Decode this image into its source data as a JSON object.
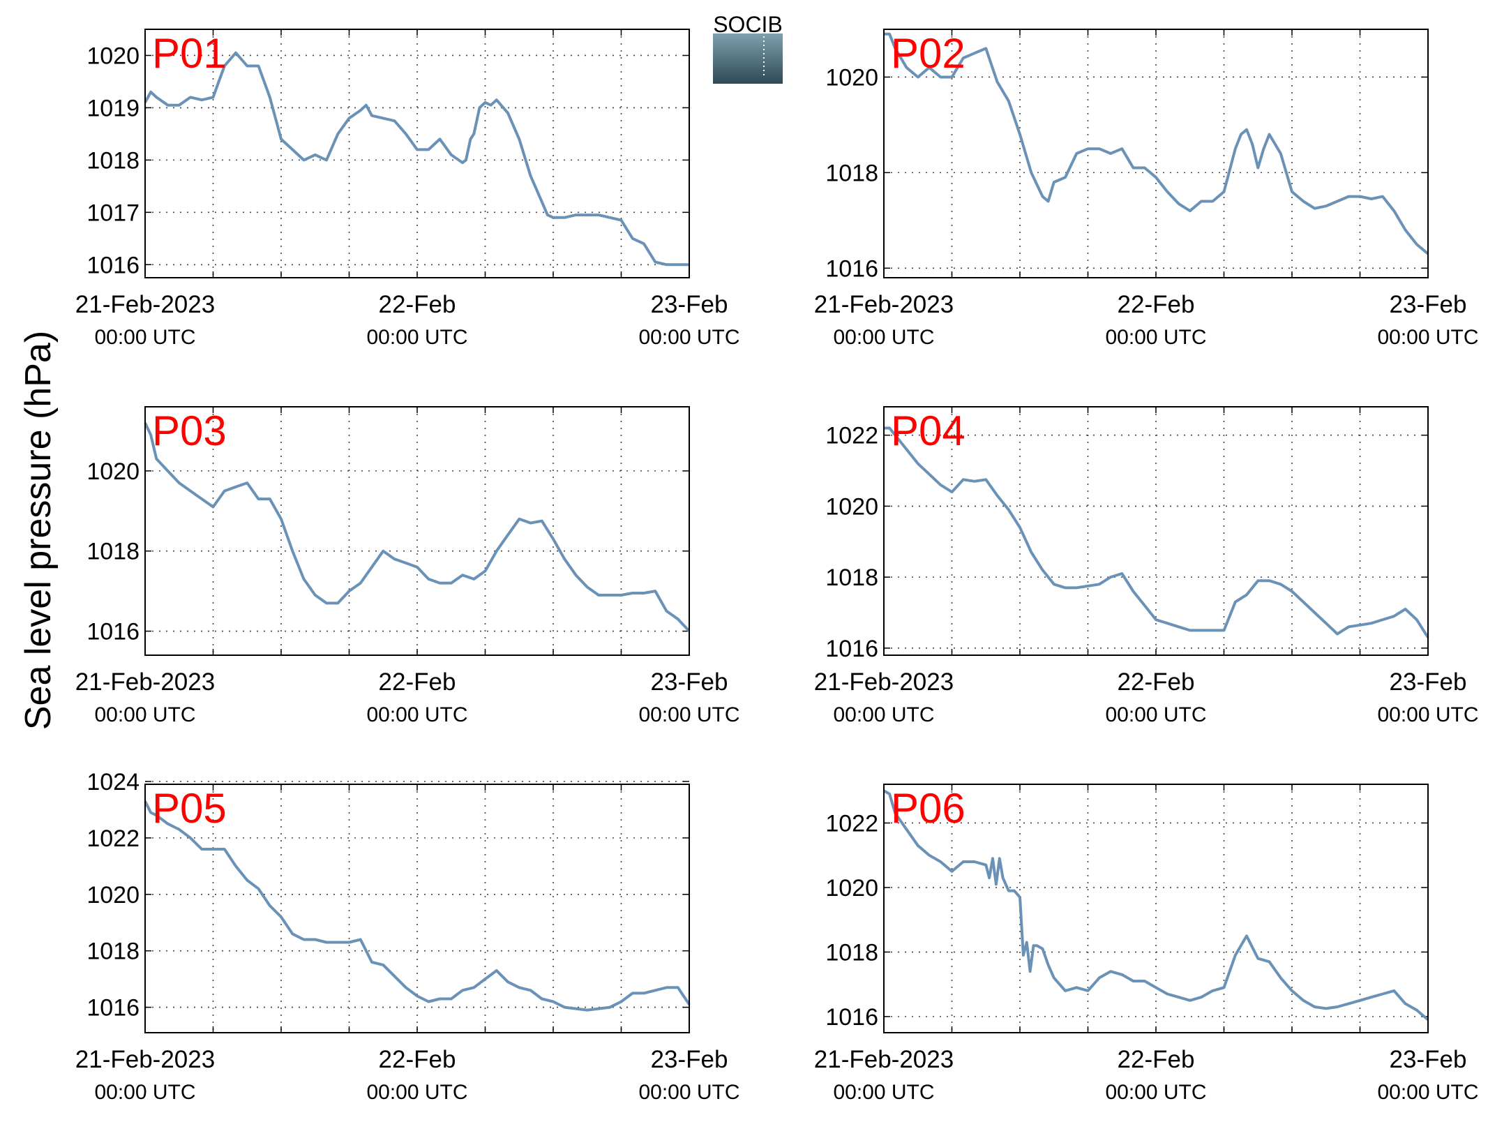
{
  "ylabel": "Sea level pressure (hPa)",
  "logo": {
    "text": "SOCIB"
  },
  "colors": {
    "line": "#6a92b6",
    "station_label": "#ff0000",
    "axis": "#000000",
    "grid": "#444444",
    "logo_text": "#5bbdd3",
    "logo_top": "#7fa0ae",
    "logo_bottom": "#2e4a56"
  },
  "xticks": [
    {
      "x": 0,
      "date": "21-Feb-2023",
      "time": "00:00 UTC"
    },
    {
      "x": 24,
      "date": "22-Feb",
      "time": "00:00 UTC"
    },
    {
      "x": 48,
      "date": "23-Feb",
      "time": "00:00 UTC"
    }
  ],
  "chart_data": [
    {
      "type": "line",
      "title": "P01",
      "x_unit": "hours since 21-Feb-2023 00:00 UTC",
      "xlim": [
        0,
        48
      ],
      "ylim": [
        1015.75,
        1020.5
      ],
      "yticks": [
        1016,
        1017,
        1018,
        1019,
        1020
      ],
      "grid": true,
      "x": [
        0,
        0.5,
        1,
        2,
        3,
        4,
        5,
        6,
        6.5,
        7,
        8,
        9,
        10,
        11,
        12,
        12.5,
        13,
        14,
        15,
        16,
        17,
        18,
        19,
        19.5,
        20,
        21,
        22,
        23,
        24,
        25,
        26,
        27,
        28,
        28.3,
        28.7,
        29,
        29.5,
        30,
        30.5,
        31,
        32,
        33,
        34,
        35,
        35.5,
        36,
        37,
        38,
        39,
        40,
        41,
        42,
        43,
        44,
        45,
        46,
        47,
        48
      ],
      "y": [
        1019.1,
        1019.3,
        1019.2,
        1019.05,
        1019.05,
        1019.2,
        1019.15,
        1019.2,
        1019.5,
        1019.8,
        1020.05,
        1019.8,
        1019.8,
        1019.2,
        1018.4,
        1018.3,
        1018.2,
        1018.0,
        1018.1,
        1018.0,
        1018.5,
        1018.8,
        1018.95,
        1019.05,
        1018.85,
        1018.8,
        1018.75,
        1018.5,
        1018.2,
        1018.2,
        1018.4,
        1018.1,
        1017.95,
        1018.0,
        1018.4,
        1018.5,
        1019.0,
        1019.1,
        1019.05,
        1019.15,
        1018.9,
        1018.4,
        1017.7,
        1017.2,
        1016.95,
        1016.9,
        1016.9,
        1016.95,
        1016.95,
        1016.95,
        1016.9,
        1016.85,
        1016.5,
        1016.4,
        1016.05,
        1016.0,
        1016.0,
        1016.0
      ]
    },
    {
      "type": "line",
      "title": "P02",
      "x_unit": "hours since 21-Feb-2023 00:00 UTC",
      "xlim": [
        0,
        48
      ],
      "ylim": [
        1015.8,
        1021.0
      ],
      "yticks": [
        1016,
        1018,
        1020
      ],
      "grid": true,
      "x": [
        0,
        0.5,
        1,
        2,
        3,
        4,
        5,
        6,
        7,
        8,
        9,
        10,
        11,
        12,
        13,
        14,
        14.5,
        15,
        16,
        17,
        18,
        19,
        20,
        21,
        22,
        23,
        24,
        25,
        26,
        27,
        28,
        29,
        30,
        31,
        31.5,
        32,
        32.5,
        33,
        33.5,
        34,
        35,
        36,
        37,
        38,
        39,
        40,
        41,
        42,
        43,
        44,
        45,
        46,
        47,
        48
      ],
      "y": [
        1020.9,
        1020.9,
        1020.6,
        1020.2,
        1020.0,
        1020.2,
        1020.0,
        1020.0,
        1020.4,
        1020.5,
        1020.6,
        1019.9,
        1019.5,
        1018.8,
        1018.0,
        1017.5,
        1017.4,
        1017.8,
        1017.9,
        1018.4,
        1018.5,
        1018.5,
        1018.4,
        1018.5,
        1018.1,
        1018.1,
        1017.9,
        1017.6,
        1017.35,
        1017.2,
        1017.4,
        1017.4,
        1017.6,
        1018.5,
        1018.8,
        1018.9,
        1018.6,
        1018.1,
        1018.5,
        1018.8,
        1018.4,
        1017.6,
        1017.4,
        1017.25,
        1017.3,
        1017.4,
        1017.5,
        1017.5,
        1017.45,
        1017.5,
        1017.2,
        1016.8,
        1016.5,
        1016.3
      ]
    },
    {
      "type": "line",
      "title": "P03",
      "x_unit": "hours since 21-Feb-2023 00:00 UTC",
      "xlim": [
        0,
        48
      ],
      "ylim": [
        1015.4,
        1021.6
      ],
      "yticks": [
        1016,
        1018,
        1020
      ],
      "grid": true,
      "x": [
        0,
        0.5,
        1,
        2,
        3,
        4,
        5,
        6,
        7,
        8,
        9,
        10,
        11,
        12,
        13,
        14,
        15,
        16,
        17,
        18,
        19,
        20,
        21,
        22,
        23,
        24,
        25,
        26,
        27,
        28,
        29,
        30,
        31,
        32,
        33,
        34,
        35,
        36,
        37,
        38,
        39,
        40,
        41,
        42,
        43,
        44,
        45,
        46,
        47,
        48
      ],
      "y": [
        1021.2,
        1020.9,
        1020.3,
        1020.0,
        1019.7,
        1019.5,
        1019.3,
        1019.1,
        1019.5,
        1019.6,
        1019.7,
        1019.3,
        1019.3,
        1018.8,
        1018.0,
        1017.3,
        1016.9,
        1016.7,
        1016.7,
        1017.0,
        1017.2,
        1017.6,
        1018.0,
        1017.8,
        1017.7,
        1017.6,
        1017.3,
        1017.2,
        1017.2,
        1017.4,
        1017.3,
        1017.5,
        1018.0,
        1018.4,
        1018.8,
        1018.7,
        1018.75,
        1018.3,
        1017.8,
        1017.4,
        1017.1,
        1016.9,
        1016.9,
        1016.9,
        1016.95,
        1016.95,
        1017.0,
        1016.5,
        1016.3,
        1016.0
      ]
    },
    {
      "type": "line",
      "title": "P04",
      "x_unit": "hours since 21-Feb-2023 00:00 UTC",
      "xlim": [
        0,
        48
      ],
      "ylim": [
        1015.8,
        1022.8
      ],
      "yticks": [
        1016,
        1018,
        1020,
        1022
      ],
      "grid": true,
      "x": [
        0,
        0.5,
        1,
        2,
        3,
        4,
        5,
        6,
        7,
        8,
        9,
        10,
        11,
        12,
        13,
        14,
        15,
        16,
        17,
        18,
        19,
        20,
        21,
        22,
        23,
        24,
        25,
        26,
        27,
        28,
        29,
        30,
        31,
        32,
        33,
        34,
        35,
        36,
        37,
        38,
        39,
        40,
        41,
        42,
        43,
        44,
        45,
        46,
        47,
        48
      ],
      "y": [
        1022.2,
        1022.2,
        1022.0,
        1021.6,
        1021.2,
        1020.9,
        1020.6,
        1020.4,
        1020.75,
        1020.7,
        1020.75,
        1020.3,
        1019.9,
        1019.4,
        1018.7,
        1018.2,
        1017.8,
        1017.7,
        1017.7,
        1017.75,
        1017.8,
        1018.0,
        1018.1,
        1017.6,
        1017.2,
        1016.8,
        1016.7,
        1016.6,
        1016.5,
        1016.5,
        1016.5,
        1016.5,
        1017.3,
        1017.5,
        1017.9,
        1017.9,
        1017.8,
        1017.6,
        1017.3,
        1017.0,
        1016.7,
        1016.4,
        1016.6,
        1016.65,
        1016.7,
        1016.8,
        1016.9,
        1017.1,
        1016.8,
        1016.3
      ]
    },
    {
      "type": "line",
      "title": "P05",
      "x_unit": "hours since 21-Feb-2023 00:00 UTC",
      "xlim": [
        0,
        48
      ],
      "ylim": [
        1015.1,
        1023.9
      ],
      "yticks": [
        1016,
        1018,
        1020,
        1022,
        1024
      ],
      "grid": true,
      "x": [
        0,
        0.5,
        1,
        2,
        3,
        4,
        5,
        6,
        7,
        8,
        9,
        10,
        11,
        12,
        13,
        14,
        15,
        16,
        17,
        18,
        19,
        20,
        21,
        22,
        23,
        24,
        25,
        26,
        27,
        28,
        29,
        30,
        31,
        32,
        33,
        34,
        35,
        36,
        37,
        38,
        39,
        40,
        41,
        42,
        43,
        44,
        45,
        46,
        47,
        48
      ],
      "y": [
        1023.3,
        1022.9,
        1022.8,
        1022.5,
        1022.3,
        1022.0,
        1021.6,
        1021.6,
        1021.6,
        1021.0,
        1020.5,
        1020.2,
        1019.6,
        1019.2,
        1018.6,
        1018.4,
        1018.4,
        1018.3,
        1018.3,
        1018.3,
        1018.4,
        1017.6,
        1017.5,
        1017.1,
        1016.7,
        1016.4,
        1016.2,
        1016.3,
        1016.3,
        1016.6,
        1016.7,
        1017.0,
        1017.3,
        1016.9,
        1016.7,
        1016.6,
        1016.3,
        1016.2,
        1016.0,
        1015.95,
        1015.9,
        1015.95,
        1016.0,
        1016.2,
        1016.5,
        1016.5,
        1016.6,
        1016.7,
        1016.7,
        1016.1
      ]
    },
    {
      "type": "line",
      "title": "P06",
      "x_unit": "hours since 21-Feb-2023 00:00 UTC",
      "xlim": [
        0,
        48
      ],
      "ylim": [
        1015.5,
        1023.2
      ],
      "yticks": [
        1016,
        1018,
        1020,
        1022
      ],
      "grid": true,
      "x": [
        0,
        0.5,
        1,
        2,
        3,
        4,
        5,
        6,
        7,
        8,
        9,
        9.3,
        9.6,
        9.9,
        10.2,
        10.5,
        11,
        11.5,
        12,
        12.3,
        12.6,
        12.9,
        13.2,
        13.5,
        14,
        14.5,
        15,
        16,
        17,
        18,
        19,
        20,
        21,
        22,
        23,
        24,
        25,
        26,
        27,
        28,
        29,
        30,
        31,
        32,
        33,
        34,
        35,
        36,
        37,
        38,
        39,
        40,
        41,
        42,
        43,
        44,
        45,
        46,
        47,
        48
      ],
      "y": [
        1023.0,
        1022.9,
        1022.3,
        1021.8,
        1021.3,
        1021.0,
        1020.8,
        1020.5,
        1020.8,
        1020.8,
        1020.7,
        1020.3,
        1020.9,
        1020.1,
        1020.9,
        1020.3,
        1019.9,
        1019.9,
        1019.7,
        1017.9,
        1018.3,
        1017.4,
        1018.2,
        1018.2,
        1018.1,
        1017.6,
        1017.2,
        1016.8,
        1016.9,
        1016.8,
        1017.2,
        1017.4,
        1017.3,
        1017.1,
        1017.1,
        1016.9,
        1016.7,
        1016.6,
        1016.5,
        1016.6,
        1016.8,
        1016.9,
        1017.9,
        1018.5,
        1017.8,
        1017.7,
        1017.2,
        1016.8,
        1016.5,
        1016.3,
        1016.25,
        1016.3,
        1016.4,
        1016.5,
        1016.6,
        1016.7,
        1016.8,
        1016.4,
        1016.2,
        1015.9
      ]
    }
  ]
}
